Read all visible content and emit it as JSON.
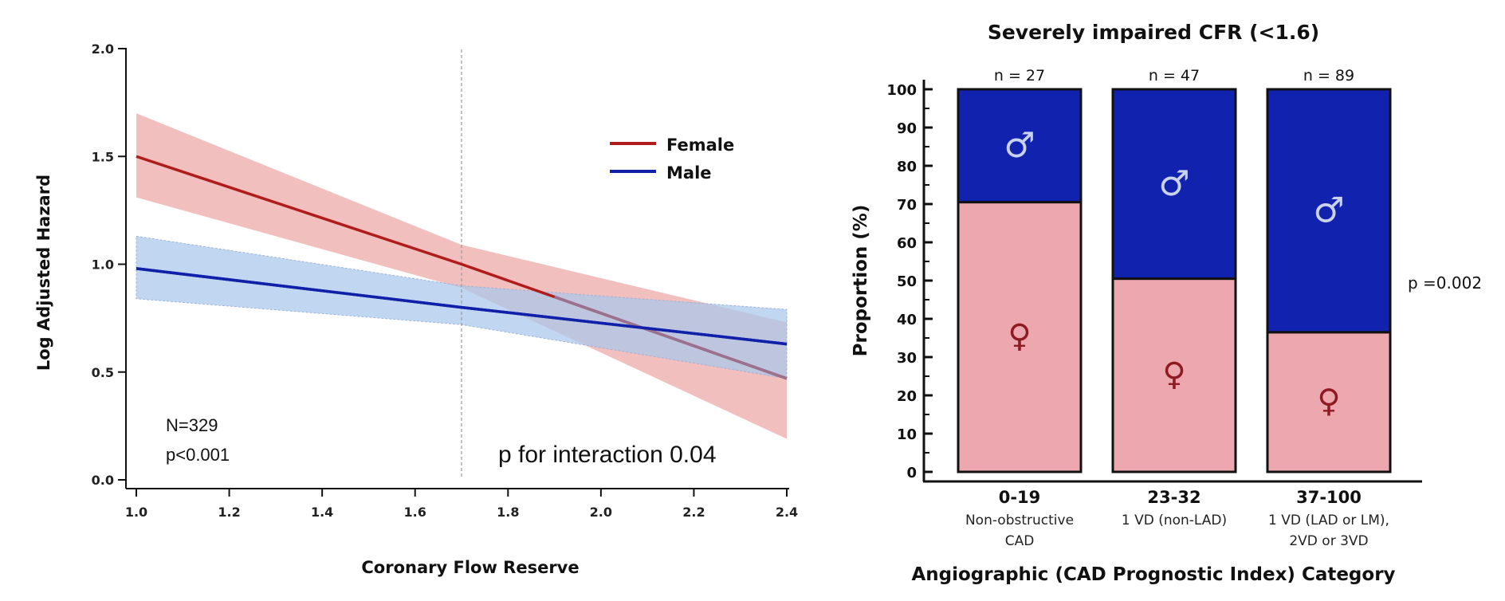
{
  "colors": {
    "female": "#b01c1c",
    "male": "#1020a8",
    "female_band": "#eea9aa",
    "male_band": "#a9c8ec",
    "overlap_line": "#9a7290",
    "bar_female": "#eda7ae",
    "bar_male": "#1122ae",
    "female_symbol": "#8e1a22",
    "male_symbol": "#c9d2ee"
  },
  "chart_data": [
    {
      "type": "line",
      "title": "",
      "xlabel": "Coronary Flow Reserve",
      "ylabel": "Log Adjusted Hazard",
      "xlim": [
        1.0,
        2.4
      ],
      "ylim": [
        0.0,
        2.0
      ],
      "xticks": [
        "1.0",
        "1.2",
        "1.4",
        "1.6",
        "1.8",
        "2.0",
        "2.2",
        "2.4"
      ],
      "yticks": [
        "0.0",
        "0.5",
        "1.0",
        "1.5",
        "2.0"
      ],
      "grid": false,
      "legend": {
        "placement": "top-right",
        "entries": [
          "Female",
          "Male"
        ]
      },
      "reference_line_x": 1.7,
      "series": [
        {
          "name": "Female",
          "x": [
            1.0,
            1.7,
            2.4
          ],
          "y": [
            1.5,
            1.0,
            0.47
          ],
          "ci_upper": [
            1.7,
            1.09,
            0.73
          ],
          "ci_lower": [
            1.31,
            0.89,
            0.19
          ]
        },
        {
          "name": "Male",
          "x": [
            1.0,
            1.7,
            2.4
          ],
          "y": [
            0.98,
            0.8,
            0.63
          ],
          "ci_upper": [
            1.13,
            0.9,
            0.79
          ],
          "ci_lower": [
            0.84,
            0.72,
            0.47
          ]
        }
      ],
      "annotations": {
        "n": "N=329",
        "p": "p<0.001",
        "interaction": "p for interaction 0.04"
      }
    },
    {
      "type": "bar",
      "stacked": true,
      "title": "Severely impaired CFR (<1.6)",
      "xlabel": "Angiographic (CAD Prognostic Index) Category",
      "ylabel": "Proportion (%)",
      "ylim": [
        0,
        100
      ],
      "yticks": [
        "0",
        "10",
        "20",
        "30",
        "40",
        "50",
        "60",
        "70",
        "80",
        "90",
        "100"
      ],
      "categories": [
        {
          "label": "0-19",
          "sub": [
            "Non-obstructive",
            "CAD"
          ],
          "n": "n = 27"
        },
        {
          "label": "23-32",
          "sub": [
            "1 VD (non-LAD)"
          ],
          "n": "n = 47"
        },
        {
          "label": "37-100",
          "sub": [
            "1 VD (LAD or LM),",
            "2VD or 3VD"
          ],
          "n": "n = 89"
        }
      ],
      "series": [
        {
          "name": "Female",
          "symbol": "♀",
          "values": [
            70.5,
            50.5,
            36.5
          ]
        },
        {
          "name": "Male",
          "symbol": "♂",
          "values": [
            29.5,
            49.5,
            63.5
          ]
        }
      ],
      "p_value": "p =0.002"
    }
  ]
}
